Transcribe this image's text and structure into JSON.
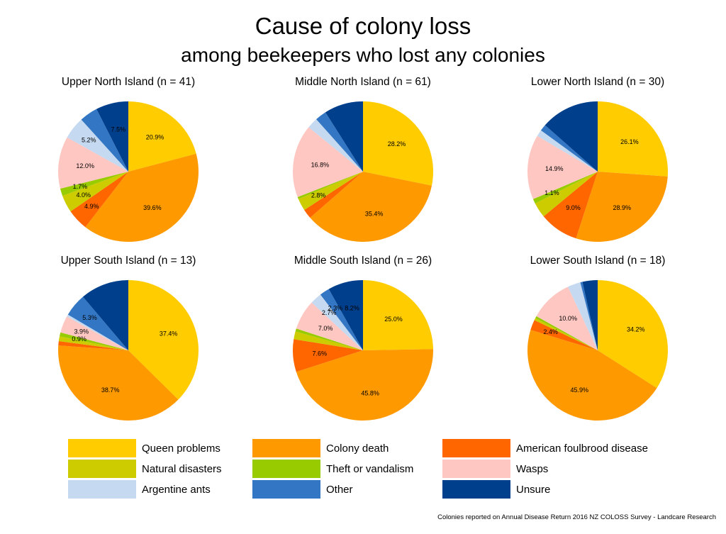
{
  "title": "Cause of colony loss",
  "subtitle": "among beekeepers who lost any colonies",
  "source": "Colonies reported on Annual Disease Return 2016 NZ COLOSS Survey - Landcare Research",
  "legend": [
    {
      "name": "Queen problems",
      "color": "#FFCC00"
    },
    {
      "name": "Colony death",
      "color": "#FF9900"
    },
    {
      "name": "American foulbrood disease",
      "color": "#FF6600"
    },
    {
      "name": "Natural disasters",
      "color": "#CCCC00"
    },
    {
      "name": "Theft or vandalism",
      "color": "#99CC00"
    },
    {
      "name": "Wasps",
      "color": "#FFC7C2"
    },
    {
      "name": "Argentine ants",
      "color": "#C5D9F0"
    },
    {
      "name": "Other",
      "color": "#3377C4"
    },
    {
      "name": "Unsure",
      "color": "#003F8C"
    }
  ],
  "chart_data": [
    {
      "type": "pie",
      "title": "Upper North Island (n = 41)",
      "categories": [
        "Queen problems",
        "Colony death",
        "American foulbrood disease",
        "Natural disasters",
        "Theft or vandalism",
        "Wasps",
        "Argentine ants",
        "Other",
        "Unsure"
      ],
      "values": [
        20.9,
        39.6,
        4.9,
        4.0,
        1.7,
        12.0,
        5.2,
        4.2,
        7.5
      ],
      "labels": [
        "20.9%",
        "39.6%",
        "4.9%",
        "4.0%",
        "1.7%",
        "12.0%",
        "5.2%",
        "",
        "7.5%"
      ]
    },
    {
      "type": "pie",
      "title": "Middle North Island (n = 61)",
      "categories": [
        "Queen problems",
        "Colony death",
        "American foulbrood disease",
        "Natural disasters",
        "Theft or vandalism",
        "Wasps",
        "Argentine ants",
        "Other",
        "Unsure"
      ],
      "values": [
        28.2,
        35.4,
        2.2,
        2.8,
        0.5,
        16.8,
        2.5,
        2.6,
        9.0
      ],
      "labels": [
        "28.2%",
        "35.4%",
        "",
        "2.8%",
        "",
        "16.8%",
        "",
        "",
        ""
      ]
    },
    {
      "type": "pie",
      "title": "Lower North Island (n = 30)",
      "categories": [
        "Queen problems",
        "Colony death",
        "American foulbrood disease",
        "Natural disasters",
        "Theft or vandalism",
        "Wasps",
        "Argentine ants",
        "Other",
        "Unsure"
      ],
      "values": [
        26.1,
        28.9,
        9.0,
        3.5,
        1.1,
        14.9,
        1.5,
        1.5,
        13.5
      ],
      "labels": [
        "26.1%",
        "28.9%",
        "9.0%",
        "",
        "1.1%",
        "14.9%",
        "",
        "",
        ""
      ]
    },
    {
      "type": "pie",
      "title": "Upper South Island (n = 13)",
      "categories": [
        "Queen problems",
        "Colony death",
        "American foulbrood disease",
        "Natural disasters",
        "Theft or vandalism",
        "Wasps",
        "Argentine ants",
        "Other",
        "Unsure"
      ],
      "values": [
        37.4,
        38.7,
        1.0,
        1.1,
        0.9,
        3.9,
        0.5,
        5.3,
        11.2
      ],
      "labels": [
        "37.4%",
        "38.7%",
        "",
        "",
        "0.9%",
        "3.9%",
        "",
        "5.3%",
        ""
      ]
    },
    {
      "type": "pie",
      "title": "Middle South Island (n = 26)",
      "categories": [
        "Queen problems",
        "Colony death",
        "American foulbrood disease",
        "Natural disasters",
        "Theft or vandalism",
        "Wasps",
        "Argentine ants",
        "Other",
        "Unsure"
      ],
      "values": [
        25.0,
        45.8,
        7.6,
        1.8,
        0.7,
        7.0,
        2.7,
        2.3,
        8.2
      ],
      "labels": [
        "25.0%",
        "45.8%",
        "7.6%",
        "",
        "",
        "7.0%",
        "2.7%",
        "2.3%",
        "8.2%"
      ]
    },
    {
      "type": "pie",
      "title": "Lower South Island (n = 18)",
      "categories": [
        "Queen problems",
        "Colony death",
        "American foulbrood disease",
        "Natural disasters",
        "Theft or vandalism",
        "Wasps",
        "Argentine ants",
        "Other",
        "Unsure"
      ],
      "values": [
        34.2,
        45.9,
        2.4,
        0.5,
        0.5,
        10.0,
        3.0,
        0.5,
        3.5
      ],
      "labels": [
        "34.2%",
        "45.9%",
        "2.4%",
        "",
        "",
        "10.0%",
        "",
        "",
        ""
      ]
    }
  ]
}
